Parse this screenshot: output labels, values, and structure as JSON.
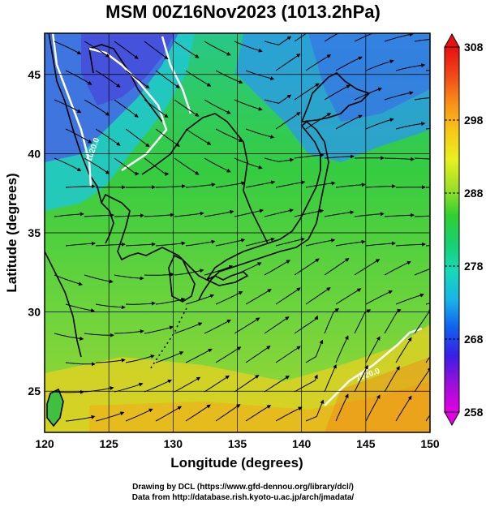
{
  "title": "MSM 00Z16Nov2023 (1013.2hPa)",
  "x_axis": {
    "label": "Longitude (degrees)",
    "ticks": [
      120,
      125,
      130,
      135,
      140,
      145,
      150
    ],
    "range": [
      120,
      150
    ]
  },
  "y_axis": {
    "label": "Latitude (degrees)",
    "ticks": [
      25,
      30,
      35,
      40,
      45
    ],
    "range": [
      22.4,
      47.6
    ]
  },
  "colorbar": {
    "ticks": [
      258,
      268,
      278,
      288,
      298,
      308
    ],
    "range": [
      258,
      308
    ],
    "colors": [
      "#e400e4",
      "#9c10d8",
      "#3a1ee6",
      "#1060f0",
      "#18b4e8",
      "#18d8b8",
      "#18d070",
      "#30d030",
      "#a0e028",
      "#e8f020",
      "#f8c818",
      "#f89018",
      "#f04818",
      "#e81010"
    ]
  },
  "contour_labels": [
    "1020.0",
    "1020.0"
  ],
  "credits": {
    "line1": "Drawing by DCL (https://www.gfd-dennou.org/library/dcl/)",
    "line2": "Data from http://database.rish.kyoto-u.ac.jp/arch/jmadata/"
  }
}
